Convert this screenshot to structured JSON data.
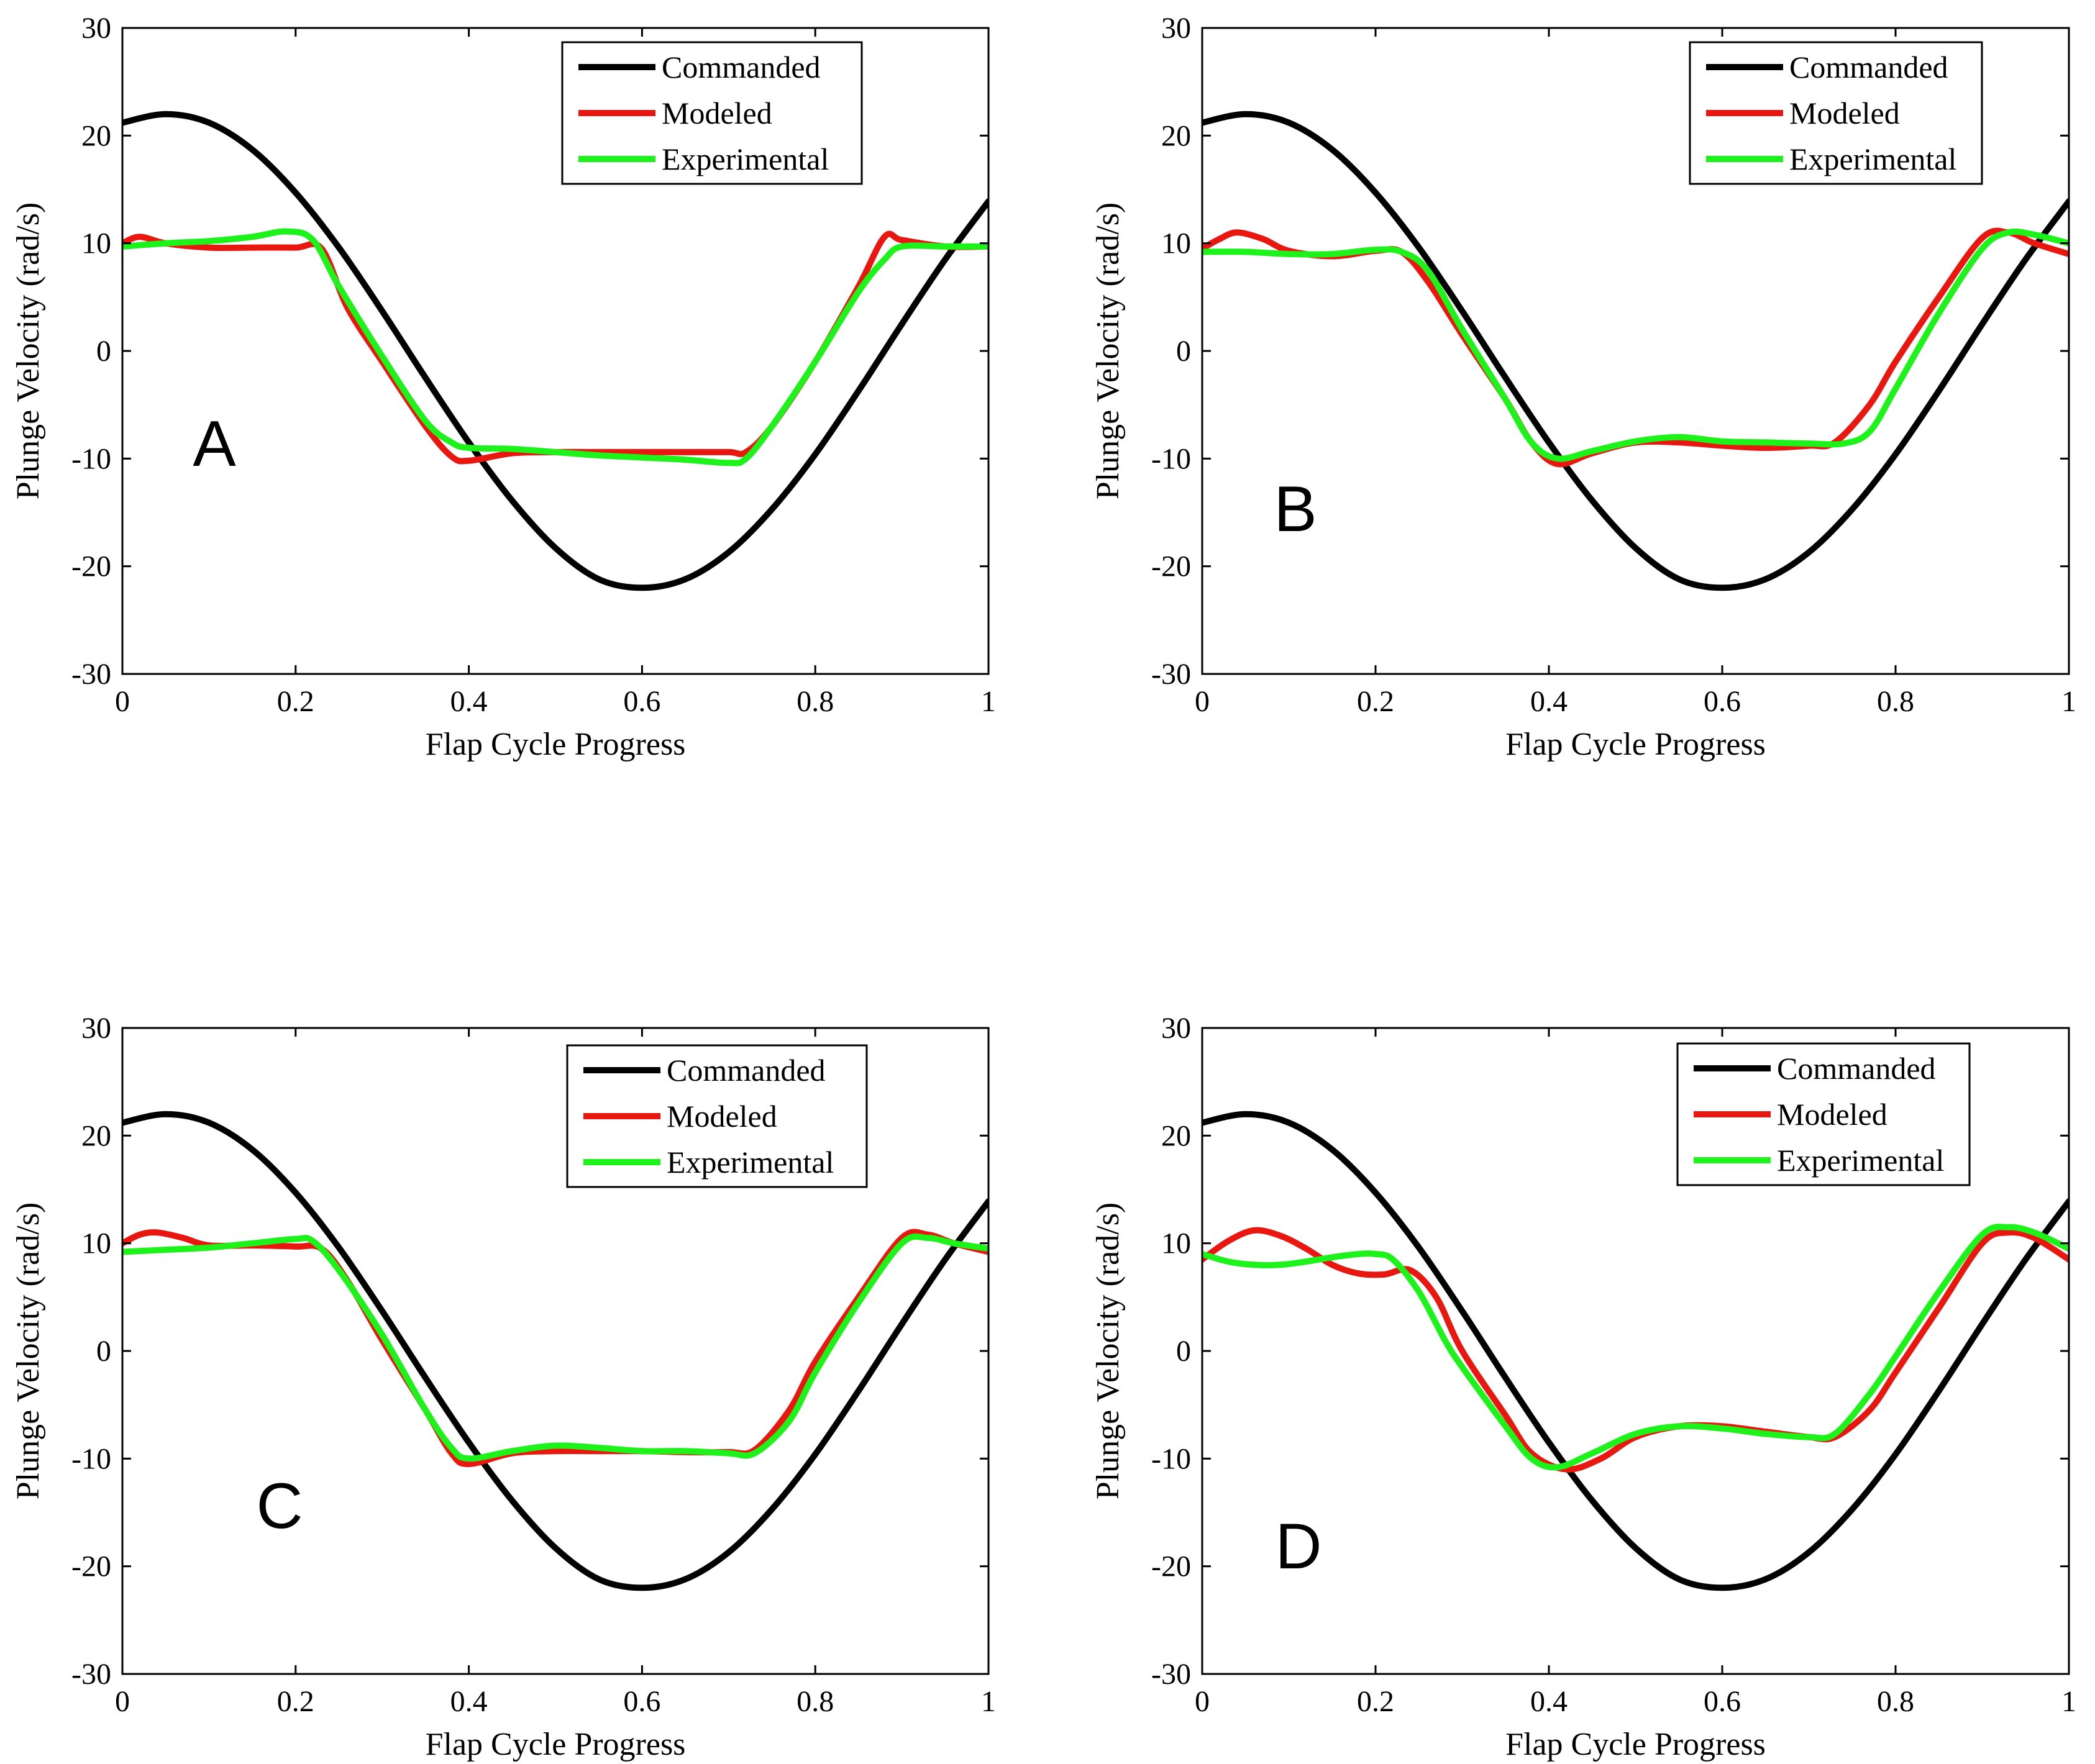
{
  "colors": {
    "Commanded": "#000000",
    "Modeled": "#e8170f",
    "Experimental": "#1ef21b"
  },
  "chart_data": [
    {
      "type": "line",
      "panel": "A",
      "xlabel": "Flap Cycle Progress",
      "ylabel": "Plunge Velocity (rad/s)",
      "xlim": [
        0,
        1
      ],
      "ylim": [
        -30,
        30
      ],
      "xticks": [
        "0",
        "0.2",
        "0.4",
        "0.6",
        "0.8",
        "1"
      ],
      "yticks": [
        "-30",
        "-20",
        "-10",
        "0",
        "10",
        "20",
        "30"
      ],
      "grid": false,
      "legend": "top-right",
      "series": [
        {
          "name": "Commanded",
          "x": [
            0,
            0.05,
            0.1,
            0.15,
            0.2,
            0.25,
            0.3,
            0.35,
            0.4,
            0.45,
            0.5,
            0.55,
            0.6,
            0.65,
            0.7,
            0.75,
            0.8,
            0.85,
            0.9,
            0.95,
            1.0
          ],
          "y": [
            21.2,
            22,
            21.2,
            18.7,
            14.7,
            9.6,
            3.7,
            -2.5,
            -8.5,
            -13.9,
            -18.3,
            -21.2,
            -22,
            -21.2,
            -18.7,
            -14.7,
            -9.6,
            -3.7,
            2.5,
            8.5,
            13.9
          ]
        },
        {
          "name": "Modeled",
          "x": [
            0,
            0.02,
            0.05,
            0.1,
            0.15,
            0.2,
            0.23,
            0.26,
            0.3,
            0.35,
            0.38,
            0.4,
            0.45,
            0.5,
            0.55,
            0.6,
            0.65,
            0.7,
            0.72,
            0.75,
            0.8,
            0.85,
            0.88,
            0.9,
            0.95,
            1.0
          ],
          "y": [
            10,
            10.6,
            10,
            9.6,
            9.6,
            9.6,
            9.5,
            4,
            -1,
            -7,
            -9.8,
            -10.2,
            -9.5,
            -9.4,
            -9.4,
            -9.4,
            -9.4,
            -9.4,
            -9.4,
            -7,
            -1,
            6,
            10.6,
            10.3,
            9.7,
            9.7
          ]
        },
        {
          "name": "Experimental",
          "x": [
            0,
            0.05,
            0.1,
            0.15,
            0.19,
            0.22,
            0.25,
            0.3,
            0.35,
            0.38,
            0.4,
            0.45,
            0.5,
            0.55,
            0.6,
            0.65,
            0.7,
            0.72,
            0.75,
            0.8,
            0.85,
            0.88,
            0.9,
            0.95,
            1.0
          ],
          "y": [
            9.7,
            10,
            10.2,
            10.6,
            11.1,
            10.3,
            6,
            -0.5,
            -6.5,
            -8.5,
            -9,
            -9.1,
            -9.4,
            -9.7,
            -9.9,
            -10.1,
            -10.4,
            -10,
            -7,
            -1,
            5.5,
            8.5,
            9.7,
            9.7,
            9.7
          ]
        }
      ]
    },
    {
      "type": "line",
      "panel": "B",
      "xlabel": "Flap Cycle Progress",
      "ylabel": "Plunge Velocity (rad/s)",
      "xlim": [
        0,
        1
      ],
      "ylim": [
        -30,
        30
      ],
      "xticks": [
        "0",
        "0.2",
        "0.4",
        "0.6",
        "0.8",
        "1"
      ],
      "yticks": [
        "-30",
        "-20",
        "-10",
        "0",
        "10",
        "20",
        "30"
      ],
      "grid": false,
      "legend": "top-right",
      "series": [
        {
          "name": "Commanded",
          "x": [
            0,
            0.05,
            0.1,
            0.15,
            0.2,
            0.25,
            0.3,
            0.35,
            0.4,
            0.45,
            0.5,
            0.55,
            0.6,
            0.65,
            0.7,
            0.75,
            0.8,
            0.85,
            0.9,
            0.95,
            1.0
          ],
          "y": [
            21.2,
            22,
            21.2,
            18.7,
            14.7,
            9.6,
            3.7,
            -2.5,
            -8.5,
            -13.9,
            -18.3,
            -21.2,
            -22,
            -21.2,
            -18.7,
            -14.7,
            -9.6,
            -3.7,
            2.5,
            8.5,
            13.9
          ]
        },
        {
          "name": "Modeled",
          "x": [
            0,
            0.02,
            0.04,
            0.07,
            0.1,
            0.15,
            0.2,
            0.23,
            0.26,
            0.3,
            0.35,
            0.38,
            0.41,
            0.45,
            0.5,
            0.55,
            0.6,
            0.65,
            0.7,
            0.73,
            0.77,
            0.8,
            0.85,
            0.9,
            0.93,
            0.96,
            1.0
          ],
          "y": [
            9.5,
            10.4,
            11,
            10.4,
            9.3,
            8.8,
            9.3,
            9.2,
            6.5,
            1.5,
            -4.5,
            -8.5,
            -10.5,
            -9.5,
            -8.5,
            -8.5,
            -8.8,
            -9,
            -8.8,
            -8.5,
            -5,
            -1,
            5,
            10.5,
            11,
            10,
            9
          ]
        },
        {
          "name": "Experimental",
          "x": [
            0,
            0.05,
            0.1,
            0.15,
            0.2,
            0.23,
            0.26,
            0.3,
            0.35,
            0.38,
            0.41,
            0.45,
            0.5,
            0.55,
            0.6,
            0.65,
            0.7,
            0.74,
            0.77,
            0.8,
            0.85,
            0.9,
            0.93,
            0.96,
            1.0
          ],
          "y": [
            9.2,
            9.2,
            9,
            9,
            9.4,
            9.2,
            7.5,
            2,
            -4.5,
            -8.5,
            -10,
            -9.3,
            -8.4,
            -8,
            -8.4,
            -8.5,
            -8.6,
            -8.6,
            -7.5,
            -3.5,
            3.5,
            9.5,
            11,
            10.8,
            10
          ]
        }
      ]
    },
    {
      "type": "line",
      "panel": "C",
      "xlabel": "Flap Cycle Progress",
      "ylabel": "Plunge Velocity (rad/s)",
      "xlim": [
        0,
        1
      ],
      "ylim": [
        -30,
        30
      ],
      "xticks": [
        "0",
        "0.2",
        "0.4",
        "0.6",
        "0.8",
        "1"
      ],
      "yticks": [
        "-30",
        "-20",
        "-10",
        "0",
        "10",
        "20",
        "30"
      ],
      "grid": false,
      "legend": "top-right",
      "series": [
        {
          "name": "Commanded",
          "x": [
            0,
            0.05,
            0.1,
            0.15,
            0.2,
            0.25,
            0.3,
            0.35,
            0.4,
            0.45,
            0.5,
            0.55,
            0.6,
            0.65,
            0.7,
            0.75,
            0.8,
            0.85,
            0.9,
            0.95,
            1.0
          ],
          "y": [
            21.2,
            22,
            21.2,
            18.7,
            14.7,
            9.6,
            3.7,
            -2.5,
            -8.5,
            -13.9,
            -18.3,
            -21.2,
            -22,
            -21.2,
            -18.7,
            -14.7,
            -9.6,
            -3.7,
            2.5,
            8.5,
            13.9
          ]
        },
        {
          "name": "Modeled",
          "x": [
            0,
            0.02,
            0.04,
            0.07,
            0.1,
            0.15,
            0.2,
            0.23,
            0.26,
            0.3,
            0.35,
            0.38,
            0.4,
            0.45,
            0.5,
            0.55,
            0.6,
            0.65,
            0.7,
            0.73,
            0.77,
            0.8,
            0.85,
            0.9,
            0.93,
            0.96,
            1.0
          ],
          "y": [
            10,
            10.8,
            11,
            10.5,
            9.8,
            9.8,
            9.7,
            9.5,
            6.5,
            1,
            -5.5,
            -9.5,
            -10.5,
            -9.5,
            -9.3,
            -9.3,
            -9.3,
            -9.4,
            -9.4,
            -9.2,
            -5.5,
            -1,
            5,
            10.5,
            10.8,
            10,
            9.2
          ]
        },
        {
          "name": "Experimental",
          "x": [
            0,
            0.05,
            0.1,
            0.15,
            0.2,
            0.22,
            0.25,
            0.3,
            0.35,
            0.38,
            0.4,
            0.45,
            0.5,
            0.55,
            0.6,
            0.65,
            0.7,
            0.73,
            0.77,
            0.8,
            0.85,
            0.9,
            0.93,
            0.96,
            1.0
          ],
          "y": [
            9.2,
            9.4,
            9.6,
            10,
            10.4,
            10.2,
            7.5,
            1.5,
            -5.5,
            -9,
            -10,
            -9.3,
            -8.8,
            -9,
            -9.3,
            -9.3,
            -9.5,
            -9.5,
            -6.5,
            -2,
            4.5,
            10,
            10.5,
            10,
            9.5
          ]
        }
      ]
    },
    {
      "type": "line",
      "panel": "D",
      "xlabel": "Flap Cycle Progress",
      "ylabel": "Plunge Velocity (rad/s)",
      "xlim": [
        0,
        1
      ],
      "ylim": [
        -30,
        30
      ],
      "xticks": [
        "0",
        "0.2",
        "0.4",
        "0.6",
        "0.8",
        "1"
      ],
      "yticks": [
        "-30",
        "-20",
        "-10",
        "0",
        "10",
        "20",
        "30"
      ],
      "grid": false,
      "legend": "top-right",
      "series": [
        {
          "name": "Commanded",
          "x": [
            0,
            0.05,
            0.1,
            0.15,
            0.2,
            0.25,
            0.3,
            0.35,
            0.4,
            0.45,
            0.5,
            0.55,
            0.6,
            0.65,
            0.7,
            0.75,
            0.8,
            0.85,
            0.9,
            0.95,
            1.0
          ],
          "y": [
            21.2,
            22,
            21.2,
            18.7,
            14.7,
            9.6,
            3.7,
            -2.5,
            -8.5,
            -13.9,
            -18.3,
            -21.2,
            -22,
            -21.2,
            -18.7,
            -14.7,
            -9.6,
            -3.7,
            2.5,
            8.5,
            13.9
          ]
        },
        {
          "name": "Modeled",
          "x": [
            0,
            0.03,
            0.06,
            0.09,
            0.12,
            0.15,
            0.18,
            0.21,
            0.24,
            0.27,
            0.3,
            0.35,
            0.38,
            0.42,
            0.46,
            0.5,
            0.55,
            0.6,
            0.65,
            0.7,
            0.73,
            0.77,
            0.8,
            0.85,
            0.9,
            0.93,
            0.96,
            1.0
          ],
          "y": [
            8.5,
            10.2,
            11.2,
            10.7,
            9.5,
            8,
            7.2,
            7.1,
            7.5,
            5,
            0,
            -6,
            -9.5,
            -11,
            -10,
            -8,
            -7,
            -7,
            -7.5,
            -8,
            -8,
            -5.5,
            -2,
            4,
            10,
            11,
            10.5,
            8.5
          ]
        },
        {
          "name": "Experimental",
          "x": [
            0,
            0.03,
            0.06,
            0.09,
            0.12,
            0.15,
            0.18,
            0.2,
            0.22,
            0.25,
            0.28,
            0.3,
            0.35,
            0.38,
            0.41,
            0.45,
            0.5,
            0.55,
            0.6,
            0.65,
            0.7,
            0.73,
            0.77,
            0.8,
            0.85,
            0.9,
            0.93,
            0.96,
            1.0
          ],
          "y": [
            9,
            8.3,
            8,
            8,
            8.3,
            8.7,
            9,
            9,
            8.5,
            5.5,
            1,
            -1.5,
            -7,
            -10,
            -10.8,
            -9.5,
            -7.7,
            -7,
            -7.2,
            -7.7,
            -8,
            -7.7,
            -4,
            -0.5,
            5.5,
            10.8,
            11.5,
            11,
            9.5
          ]
        }
      ]
    }
  ]
}
